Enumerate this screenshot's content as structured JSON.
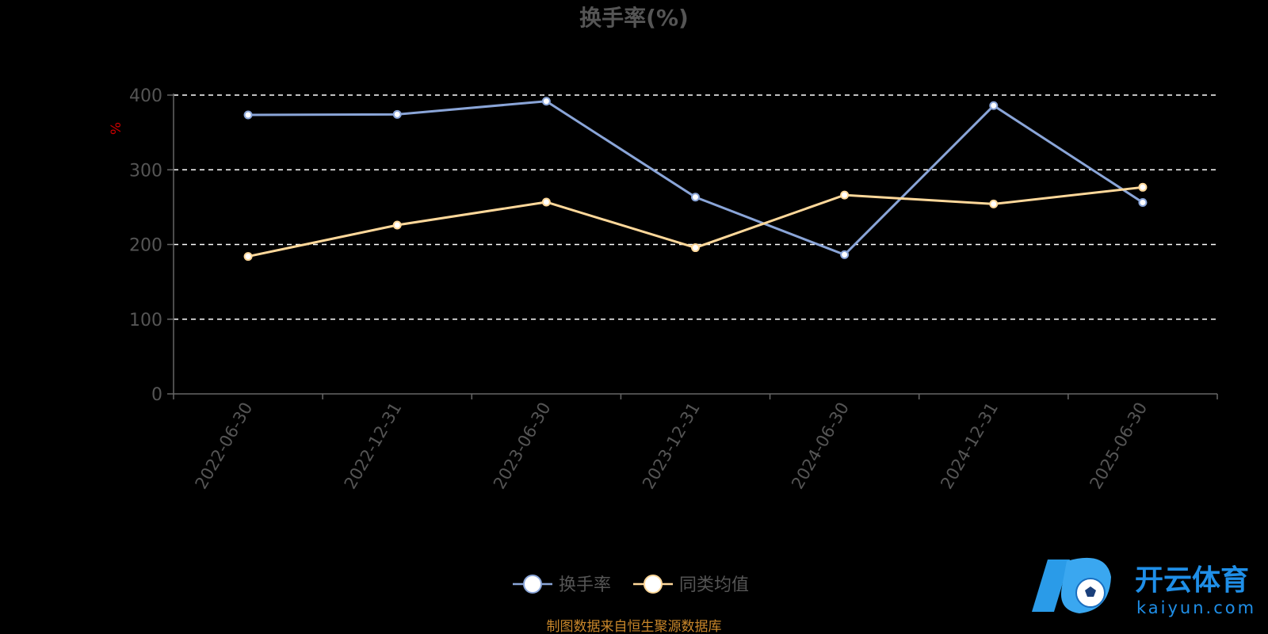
{
  "chart_data": {
    "type": "line",
    "title": "换手率(%)",
    "ylabel": "%",
    "ylim": [
      0,
      400
    ],
    "yticks": [
      "0",
      "100",
      "200",
      "300",
      "400"
    ],
    "grid": true,
    "legend_position": "bottom-center",
    "categories": [
      "2022-06-30",
      "2022-12-31",
      "2023-06-30",
      "2023-12-31",
      "2024-06-30",
      "2024-12-31",
      "2025-06-30"
    ],
    "series": [
      {
        "name": "换手率",
        "color": "#8aa5d8",
        "values": [
          373.5,
          374.2,
          391.8,
          263.4,
          186.3,
          385.9,
          256.2
        ]
      },
      {
        "name": "同类均值",
        "color": "#ffd89a",
        "values": [
          184.0,
          226.0,
          256.8,
          195.7,
          266.2,
          254.2,
          276.6
        ]
      }
    ]
  },
  "footer": {
    "source": "制图数据来自恒生聚源数据库"
  },
  "watermark": {
    "brand_name": "开云体育",
    "brand_url": "kaiyun.com"
  }
}
